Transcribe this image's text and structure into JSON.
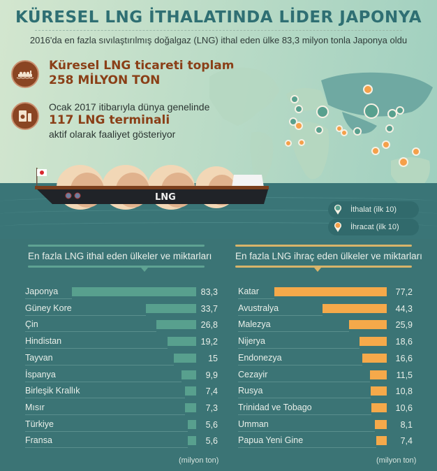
{
  "header": {
    "title": "KÜRESEL LNG İTHALATINDA LİDER JAPONYA",
    "subtitle": "2016'da en fazla sıvılaştırılmış doğalgaz (LNG) ithal eden ülke 83,3 milyon tonla Japonya oldu"
  },
  "facts": [
    {
      "icon": "ship-icon",
      "line1": "Küresel LNG ticareti toplam",
      "line2": "258 MİLYON TON"
    },
    {
      "icon": "tank-icon",
      "line1": "Ocak 2017 itibarıyla dünya genelinde",
      "line2": "117 LNG terminali",
      "line3": "aktif olarak faaliyet gösteriyor"
    }
  ],
  "ship": {
    "hull_label": "LNG",
    "flag": "Japan"
  },
  "legend": {
    "import_label": "İthalat (ilk 10)",
    "export_label": "İhracat (ilk 10)"
  },
  "colors": {
    "import_bar": "#58a08e",
    "export_bar": "#f5a94a",
    "title": "#2f6f73",
    "fact_accent": "#8a3f17",
    "panel_bg": "#3b7475"
  },
  "chart_data": [
    {
      "type": "bar",
      "orientation": "horizontal",
      "title": "En fazla LNG ithal eden ülkeler ve miktarları",
      "unit_label": "(milyon ton)",
      "categories": [
        "Japonya",
        "Güney Kore",
        "Çin",
        "Hindistan",
        "Tayvan",
        "İspanya",
        "Birleşik Krallık",
        "Mısır",
        "Türkiye",
        "Fransa"
      ],
      "values": [
        83.3,
        33.7,
        26.8,
        19.2,
        15,
        9.9,
        7.4,
        7.3,
        5.6,
        5.6
      ],
      "value_labels": [
        "83,3",
        "33,7",
        "26,8",
        "19,2",
        "15",
        "9,9",
        "7,4",
        "7,3",
        "5,6",
        "5,6"
      ],
      "color": "#58a08e"
    },
    {
      "type": "bar",
      "orientation": "horizontal",
      "title": "En fazla LNG ihraç eden ülkeler ve miktarları",
      "unit_label": "(milyon ton)",
      "categories": [
        "Katar",
        "Avustralya",
        "Malezya",
        "Nijerya",
        "Endonezya",
        "Cezayir",
        "Rusya",
        "Trinidad ve Tobago",
        "Umman",
        "Papua Yeni Gine"
      ],
      "values": [
        77.2,
        44.3,
        25.9,
        18.6,
        16.6,
        11.5,
        10.8,
        10.6,
        8.1,
        7.4
      ],
      "value_labels": [
        "77,2",
        "44,3",
        "25,9",
        "18,6",
        "16,6",
        "11,5",
        "10,8",
        "10,6",
        "8,1",
        "7,4"
      ],
      "color": "#f5a94a"
    }
  ]
}
